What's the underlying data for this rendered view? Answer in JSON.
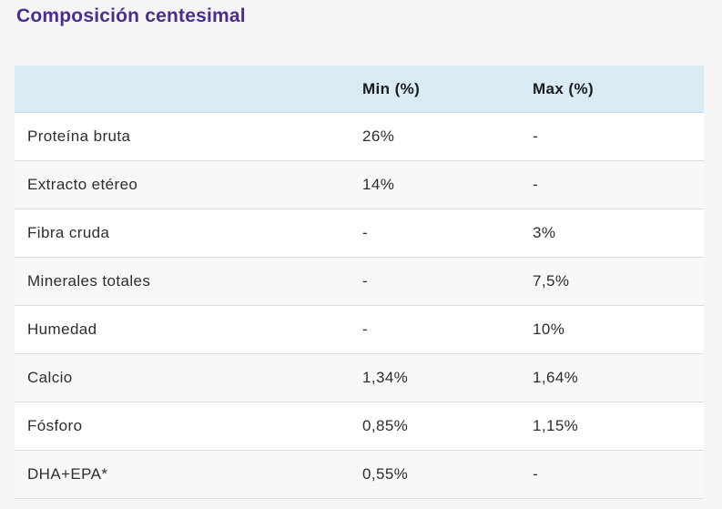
{
  "page": {
    "title": "Composición centesimal"
  },
  "colors": {
    "title": "#4a2d8f",
    "header_bg": "#d9ecf5",
    "page_bg": "#f5f5f6",
    "row_alt_bg": "#f8f8f9",
    "text": "#2d2d2d",
    "divider": "#dcdde0"
  },
  "table": {
    "header": {
      "label": "",
      "min": "Min (%)",
      "max": "Max (%)"
    },
    "rows": [
      {
        "label": "Proteína bruta",
        "min": "26%",
        "max": "-"
      },
      {
        "label": "Extracto etéreo",
        "min": "14%",
        "max": "-"
      },
      {
        "label": "Fibra cruda",
        "min": "-",
        "max": "3%"
      },
      {
        "label": "Minerales totales",
        "min": "-",
        "max": "7,5%"
      },
      {
        "label": "Humedad",
        "min": "-",
        "max": "10%"
      },
      {
        "label": "Calcio",
        "min": "1,34%",
        "max": "1,64%"
      },
      {
        "label": "Fósforo",
        "min": "0,85%",
        "max": "1,15%"
      },
      {
        "label": "DHA+EPA*",
        "min": "0,55%",
        "max": "-"
      }
    ]
  },
  "chart_data": {
    "type": "table",
    "title": "Composición centesimal",
    "columns": [
      "",
      "Min (%)",
      "Max (%)"
    ],
    "rows": [
      [
        "Proteína bruta",
        "26%",
        "-"
      ],
      [
        "Extracto etéreo",
        "14%",
        "-"
      ],
      [
        "Fibra cruda",
        "-",
        "3%"
      ],
      [
        "Minerales totales",
        "-",
        "7,5%"
      ],
      [
        "Humedad",
        "-",
        "10%"
      ],
      [
        "Calcio",
        "1,34%",
        "1,64%"
      ],
      [
        "Fósforo",
        "0,85%",
        "1,15%"
      ],
      [
        "DHA+EPA*",
        "0,55%",
        "-"
      ]
    ]
  }
}
